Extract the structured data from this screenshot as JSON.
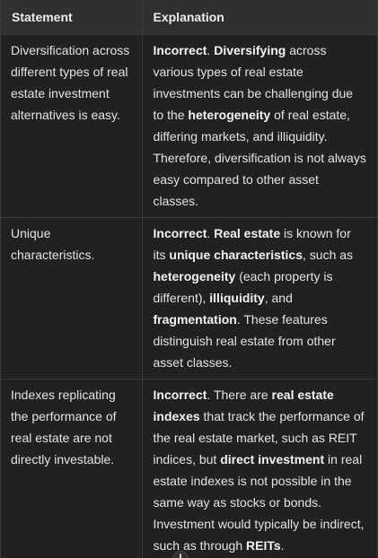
{
  "table": {
    "headers": [
      "Statement",
      "Explanation"
    ],
    "rows": [
      {
        "statement": "Diversification across different types of real estate investment alternatives is easy.",
        "explanation": [
          {
            "text": "Incorrect",
            "bold": true
          },
          {
            "text": ". ",
            "bold": false
          },
          {
            "text": "Diversifying",
            "bold": true
          },
          {
            "text": " across various types of real estate investments can be challenging due to the ",
            "bold": false
          },
          {
            "text": "heterogeneity",
            "bold": true
          },
          {
            "text": " of real estate, differing markets, and illiquidity. Therefore, diversification is not always easy compared to other asset classes.",
            "bold": false
          }
        ]
      },
      {
        "statement": "Unique characteristics.",
        "explanation": [
          {
            "text": "Incorrect",
            "bold": true
          },
          {
            "text": ". ",
            "bold": false
          },
          {
            "text": "Real estate",
            "bold": true
          },
          {
            "text": " is known for its ",
            "bold": false
          },
          {
            "text": "unique characteristics",
            "bold": true
          },
          {
            "text": ", such as ",
            "bold": false
          },
          {
            "text": "heterogeneity",
            "bold": true
          },
          {
            "text": " (each property is different), ",
            "bold": false
          },
          {
            "text": "illiquidity",
            "bold": true
          },
          {
            "text": ", and ",
            "bold": false
          },
          {
            "text": "fragmentation",
            "bold": true
          },
          {
            "text": ". These features distinguish real estate from other asset classes.",
            "bold": false
          }
        ]
      },
      {
        "statement": "Indexes replicating the performance of real estate are not directly investable.",
        "explanation": [
          {
            "text": "Incorrect",
            "bold": true
          },
          {
            "text": ". There are ",
            "bold": false
          },
          {
            "text": "real estate indexes",
            "bold": true
          },
          {
            "text": " that track the performance of the real estate market, such as REIT indices, but ",
            "bold": false
          },
          {
            "text": "direct investment",
            "bold": true
          },
          {
            "text": " in real estate indexes is not possible in the same way as stocks or bonds. Investment would typically be indirect, such as through ",
            "bold": false
          },
          {
            "text": "REITs",
            "bold": true
          },
          {
            "text": ".",
            "bold": false
          }
        ]
      }
    ]
  }
}
